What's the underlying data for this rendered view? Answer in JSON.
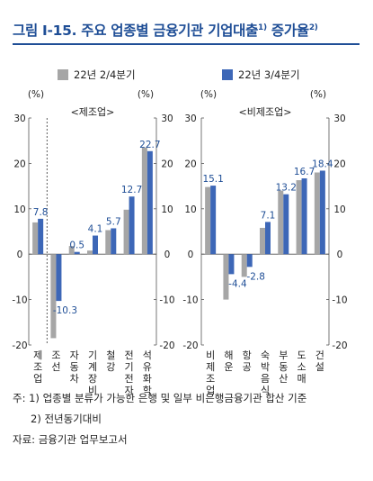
{
  "title": {
    "main": "그림 Ⅰ-15. 주요 업종별 금융기관 기업대출",
    "sup1": "1)",
    "mid": " 증가율",
    "sup2": "2)"
  },
  "colors": {
    "series1": "#a6a6a6",
    "series2": "#3d67b7",
    "title": "#1f4e96",
    "positive_label": "#1f4e96",
    "negative_label": "#1f4e96"
  },
  "legend": [
    "22년 2/4분기",
    "22년 3/4분기"
  ],
  "notes": {
    "line1": "주: 1) 업종별 분류가 가능한 은행 및 일부 비은행금융기관 합산 기준",
    "line2": "2) 전년동기대비",
    "source": "자료: 금융기관 업무보고서"
  },
  "chart_data": [
    {
      "type": "bar",
      "panel_label": "<제조업>",
      "y_unit_label": "(%)",
      "ylim": [
        -20,
        30
      ],
      "yticks": [
        "30",
        "20",
        "10",
        "0",
        "-10",
        "-20"
      ],
      "categories": [
        "제조업",
        "조선",
        "자동차",
        "기계장비",
        "철강",
        "전기전자",
        "석유화학"
      ],
      "series": [
        {
          "name": "22년 2/4분기",
          "values": [
            7.0,
            -18.5,
            1.8,
            0.8,
            5.3,
            9.8,
            23.5
          ]
        },
        {
          "name": "22년 3/4분기",
          "values": [
            7.8,
            -10.3,
            0.5,
            4.1,
            5.7,
            12.7,
            22.7
          ]
        }
      ],
      "data_labels": [
        "7.8",
        "-10.3",
        "0.5",
        "4.1",
        "5.7",
        "12.7",
        "22.7"
      ]
    },
    {
      "type": "bar",
      "panel_label": "<비제조업>",
      "y_unit_label": "(%)",
      "ylim": [
        -20,
        30
      ],
      "yticks": [
        "30",
        "20",
        "10",
        "0",
        "-10",
        "-20"
      ],
      "categories": [
        "비제조업",
        "해운",
        "항공",
        "숙박음식",
        "부동산",
        "도소매",
        "건설"
      ],
      "series": [
        {
          "name": "22년 2/4분기",
          "values": [
            14.8,
            -10.0,
            -5.0,
            5.8,
            14.0,
            16.3,
            18.0
          ]
        },
        {
          "name": "22년 3/4분기",
          "values": [
            15.1,
            -4.4,
            -2.8,
            7.1,
            13.2,
            16.7,
            18.4
          ]
        }
      ],
      "data_labels": [
        "15.1",
        "-4.4",
        "-2.8",
        "7.1",
        "13.2",
        "16.7",
        "18.4"
      ]
    }
  ]
}
